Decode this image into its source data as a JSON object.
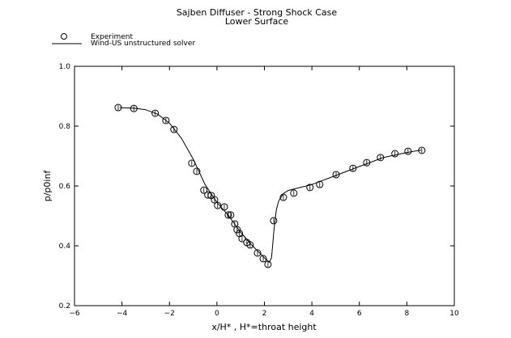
{
  "chart_data": {
    "type": "line",
    "title": "Sajben Diffuser - Strong Shock Case",
    "subtitle": "Lower Surface",
    "xlabel": "x/H* , H*=throat height",
    "ylabel": "p/p0inf",
    "xlim": [
      -6,
      10
    ],
    "ylim": [
      0.2,
      1.0
    ],
    "xticks": [
      -6,
      -4,
      -2,
      0,
      2,
      4,
      6,
      8,
      10
    ],
    "yticks": [
      0.2,
      0.4,
      0.6,
      0.8,
      1.0
    ],
    "xtick_labels": [
      "−6",
      "−4",
      "−2",
      "0",
      "2",
      "4",
      "6",
      "8",
      "10"
    ],
    "ytick_labels": [
      "0.2",
      "0.4",
      "0.6",
      "0.8",
      "1.0"
    ],
    "grid": false,
    "legend_position": "top-left, outside plot",
    "series": [
      {
        "name": "Experiment",
        "style": "markers",
        "x": [
          -4.16,
          -3.5,
          -2.6,
          -2.15,
          -1.81,
          -1.06,
          -0.85,
          -0.55,
          -0.38,
          -0.24,
          -0.1,
          0.03,
          0.31,
          0.48,
          0.58,
          0.75,
          0.85,
          0.95,
          1.06,
          1.26,
          1.4,
          1.71,
          1.95,
          2.15,
          2.39,
          2.8,
          3.24,
          3.92,
          4.33,
          5.02,
          5.73,
          6.31,
          6.89,
          7.5,
          8.05,
          8.63
        ],
        "y": [
          0.862,
          0.859,
          0.843,
          0.819,
          0.789,
          0.676,
          0.649,
          0.586,
          0.57,
          0.568,
          0.554,
          0.535,
          0.53,
          0.503,
          0.503,
          0.473,
          0.454,
          0.441,
          0.424,
          0.411,
          0.403,
          0.376,
          0.357,
          0.338,
          0.484,
          0.562,
          0.576,
          0.595,
          0.605,
          0.638,
          0.659,
          0.678,
          0.695,
          0.708,
          0.716,
          0.719
        ]
      },
      {
        "name": "Wind-US unstructured solver",
        "style": "line",
        "x": [
          -4.1,
          -3.5,
          -3.0,
          -2.5,
          -2.0,
          -1.5,
          -1.0,
          -0.5,
          0,
          0.5,
          1.0,
          1.5,
          2.0,
          2.2,
          2.3,
          2.4,
          2.5,
          2.6,
          2.8,
          3.0,
          3.5,
          4.0,
          5.0,
          6.0,
          7.0,
          8.0,
          8.6
        ],
        "y": [
          0.862,
          0.86,
          0.855,
          0.84,
          0.81,
          0.76,
          0.69,
          0.605,
          0.545,
          0.5,
          0.445,
          0.4,
          0.36,
          0.345,
          0.36,
          0.45,
          0.52,
          0.55,
          0.575,
          0.585,
          0.595,
          0.605,
          0.635,
          0.665,
          0.695,
          0.712,
          0.72
        ]
      }
    ]
  }
}
